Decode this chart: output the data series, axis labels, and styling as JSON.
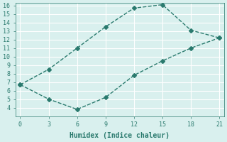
{
  "upper_x": [
    0,
    3,
    6,
    9,
    12,
    15,
    18,
    21
  ],
  "upper_y": [
    6.7,
    8.5,
    11.0,
    13.5,
    15.7,
    16.1,
    13.1,
    12.2
  ],
  "lower_x": [
    0,
    3,
    6,
    9,
    12,
    15,
    18,
    21
  ],
  "lower_y": [
    6.7,
    5.0,
    3.8,
    5.2,
    7.8,
    9.5,
    11.0,
    12.2
  ],
  "line_color": "#2a7a6e",
  "bg_color": "#d9f0ee",
  "grid_color": "#ffffff",
  "xlabel": "Humidex (Indice chaleur)",
  "xlim": [
    0,
    21
  ],
  "ylim": [
    3,
    16
  ],
  "xticks": [
    0,
    3,
    6,
    9,
    12,
    15,
    18,
    21
  ],
  "yticks": [
    4,
    5,
    6,
    7,
    8,
    9,
    10,
    11,
    12,
    13,
    14,
    15,
    16
  ]
}
